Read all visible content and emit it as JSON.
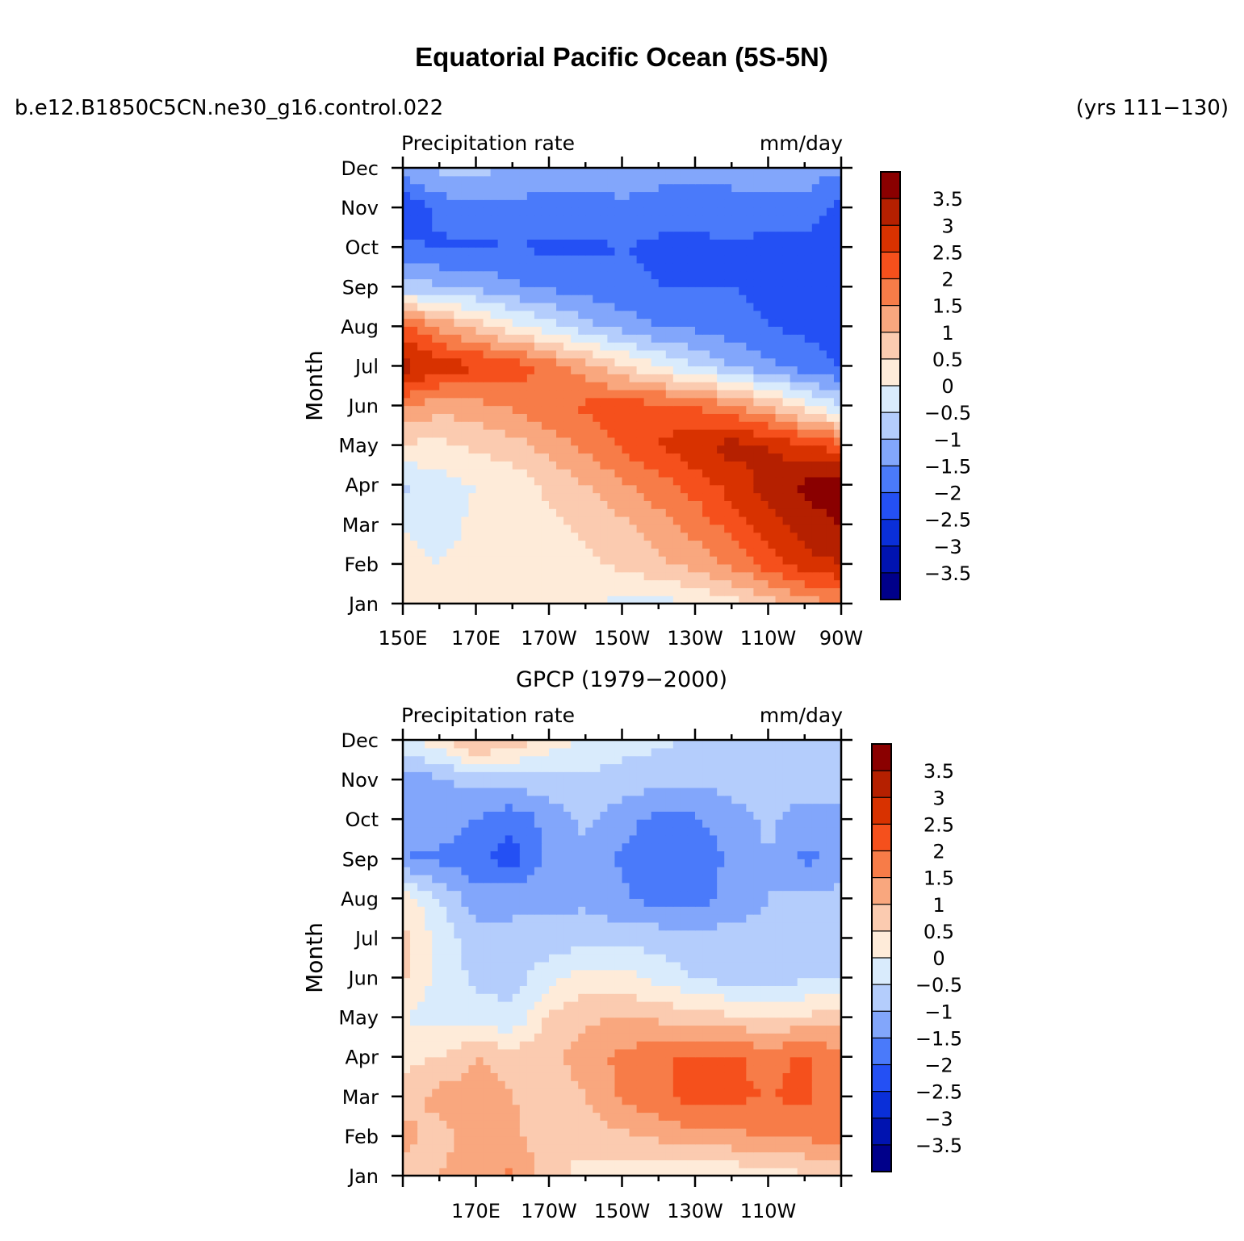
{
  "figure": {
    "title": "Equatorial Pacific Ocean (5S-5N)",
    "case_name": "b.e12.B1850C5CN.ne30_g16.control.022",
    "years": "(yrs 111−130)"
  },
  "colorbar": {
    "levels": [
      "3.5",
      "3",
      "2.5",
      "2",
      "1.5",
      "1",
      "0.5",
      "0",
      "−0.5",
      "−1",
      "−1.5",
      "−2",
      "−2.5",
      "−3",
      "−3.5"
    ],
    "colors": [
      "#8a0000",
      "#b52000",
      "#d83200",
      "#f5501c",
      "#f77c48",
      "#f9a77e",
      "#fbcbb0",
      "#feebd9",
      "#d9ebfc",
      "#b4cdfc",
      "#82a6fb",
      "#4a7afa",
      "#2450f4",
      "#0a2fd8",
      "#0013b0",
      "#00008a"
    ]
  },
  "chart_data": [
    {
      "type": "heatmap",
      "panel": "model",
      "subtitle": "",
      "left_label": "Precipitation  rate",
      "right_label": "mm/day",
      "xlabel": "",
      "ylabel": "Month",
      "xlim": [
        150,
        270
      ],
      "x_ticks": [
        "150E",
        "170E",
        "170W",
        "150W",
        "130W",
        "110W",
        "90W"
      ],
      "y_ticks": [
        "Jan",
        "Feb",
        "Mar",
        "Apr",
        "May",
        "Jun",
        "Jul",
        "Aug",
        "Sep",
        "Oct",
        "Nov",
        "Dec"
      ],
      "x": [
        150,
        160,
        170,
        180,
        190,
        200,
        210,
        220,
        230,
        240,
        250,
        260,
        270
      ],
      "months": [
        "Jan",
        "Feb",
        "Mar",
        "Apr",
        "May",
        "Jun",
        "Jul",
        "Aug",
        "Sep",
        "Oct",
        "Nov",
        "Dec"
      ],
      "values": [
        [
          0.3,
          0.2,
          0.3,
          0.2,
          0.1,
          0.0,
          -0.1,
          -0.2,
          0.0,
          0.3,
          0.8,
          1.2,
          1.5
        ],
        [
          0.1,
          0.0,
          0.2,
          0.3,
          0.3,
          0.4,
          0.6,
          0.9,
          1.2,
          1.6,
          2.2,
          2.8,
          3.0
        ],
        [
          0.0,
          -0.2,
          0.1,
          0.3,
          0.4,
          0.6,
          0.9,
          1.3,
          1.7,
          2.2,
          2.8,
          3.3,
          3.5
        ],
        [
          -0.6,
          -0.2,
          0.0,
          0.2,
          0.6,
          1.0,
          1.4,
          1.8,
          2.2,
          2.7,
          3.2,
          3.6,
          3.8
        ],
        [
          0.4,
          0.4,
          0.6,
          0.8,
          1.2,
          1.6,
          2.1,
          2.5,
          2.9,
          3.2,
          3.0,
          2.6,
          2.2
        ],
        [
          1.6,
          1.2,
          1.3,
          1.6,
          1.9,
          2.1,
          2.2,
          2.2,
          2.0,
          1.6,
          1.0,
          0.2,
          -0.5
        ],
        [
          3.2,
          2.8,
          2.6,
          2.3,
          1.8,
          1.2,
          0.6,
          0.0,
          -0.5,
          -1.0,
          -1.4,
          -1.8,
          -2.0
        ],
        [
          2.2,
          1.4,
          0.8,
          0.2,
          -0.3,
          -0.8,
          -1.2,
          -1.5,
          -1.6,
          -1.8,
          -2.0,
          -2.1,
          -2.2
        ],
        [
          -0.8,
          -0.9,
          -1.1,
          -1.4,
          -1.6,
          -1.7,
          -1.9,
          -2.0,
          -2.0,
          -2.0,
          -2.1,
          -2.2,
          -2.3
        ],
        [
          -1.8,
          -2.1,
          -2.1,
          -2.0,
          -2.1,
          -2.1,
          -2.0,
          -2.1,
          -2.1,
          -2.1,
          -2.2,
          -2.2,
          -2.5
        ],
        [
          -2.5,
          -1.8,
          -1.6,
          -1.6,
          -1.7,
          -1.7,
          -1.6,
          -1.8,
          -1.8,
          -1.7,
          -1.6,
          -1.6,
          -2.2
        ],
        [
          -1.2,
          -0.9,
          -0.8,
          -1.1,
          -1.3,
          -1.3,
          -1.2,
          -1.2,
          -1.3,
          -1.3,
          -1.3,
          -1.3,
          -1.4
        ]
      ]
    },
    {
      "type": "heatmap",
      "panel": "observations",
      "subtitle": "GPCP (1979−2000)",
      "left_label": "Precipitation  rate",
      "right_label": "mm/day",
      "xlabel": "",
      "ylabel": "Month",
      "xlim": [
        150,
        270
      ],
      "x_ticks": [
        "170E",
        "170W",
        "150W",
        "130W",
        "110W"
      ],
      "y_ticks": [
        "Jan",
        "Feb",
        "Mar",
        "Apr",
        "May",
        "Jun",
        "Jul",
        "Aug",
        "Sep",
        "Oct",
        "Nov",
        "Dec"
      ],
      "x": [
        150,
        160,
        170,
        180,
        190,
        200,
        210,
        220,
        230,
        240,
        250,
        260,
        270
      ],
      "months": [
        "Jan",
        "Feb",
        "Mar",
        "Apr",
        "May",
        "Jun",
        "Jul",
        "Aug",
        "Sep",
        "Oct",
        "Nov",
        "Dec"
      ],
      "values": [
        [
          0.6,
          1.0,
          1.3,
          1.6,
          0.7,
          0.3,
          0.2,
          0.1,
          0.0,
          0.1,
          0.2,
          0.4,
          0.5
        ],
        [
          1.2,
          0.8,
          1.3,
          1.2,
          0.5,
          0.7,
          0.9,
          1.1,
          1.3,
          1.4,
          1.5,
          1.6,
          1.8
        ],
        [
          0.7,
          1.2,
          1.2,
          1.0,
          0.5,
          1.0,
          1.6,
          1.9,
          2.2,
          2.1,
          2.0,
          2.1,
          1.6
        ],
        [
          0.3,
          0.5,
          1.0,
          0.8,
          0.8,
          1.3,
          1.6,
          1.9,
          2.1,
          2.1,
          1.8,
          2.1,
          1.6
        ],
        [
          0.0,
          -0.2,
          -0.3,
          -0.4,
          0.6,
          0.9,
          1.0,
          0.9,
          0.8,
          0.6,
          0.5,
          0.6,
          0.8
        ],
        [
          0.6,
          -0.2,
          -0.6,
          -0.7,
          -0.2,
          0.3,
          0.2,
          -0.2,
          -0.5,
          -0.7,
          -0.8,
          -0.6,
          -0.5
        ],
        [
          0.7,
          -0.2,
          -0.8,
          -0.8,
          -0.8,
          -0.7,
          -0.7,
          -0.7,
          -0.8,
          -0.8,
          -0.8,
          -0.8,
          -0.9
        ],
        [
          0.3,
          -0.5,
          -1.3,
          -1.2,
          -1.2,
          -1.1,
          -1.4,
          -1.7,
          -1.7,
          -1.3,
          -1.0,
          -0.9,
          -0.8
        ],
        [
          -1.5,
          -1.6,
          -1.9,
          -2.2,
          -1.3,
          -1.1,
          -1.6,
          -1.8,
          -1.8,
          -1.4,
          -1.0,
          -1.6,
          -1.4
        ],
        [
          -1.3,
          -1.2,
          -1.5,
          -1.9,
          -1.3,
          -0.9,
          -1.3,
          -1.7,
          -1.6,
          -1.2,
          -0.9,
          -1.3,
          -1.2
        ],
        [
          -1.2,
          -1.1,
          -0.8,
          -0.7,
          -0.7,
          -0.6,
          -0.7,
          -0.8,
          -0.9,
          -0.8,
          -0.7,
          -0.7,
          -0.7
        ],
        [
          -0.2,
          0.3,
          1.2,
          0.8,
          0.3,
          -0.1,
          -0.3,
          -0.4,
          -0.6,
          -0.6,
          -0.6,
          -0.5,
          -0.6
        ]
      ]
    }
  ]
}
